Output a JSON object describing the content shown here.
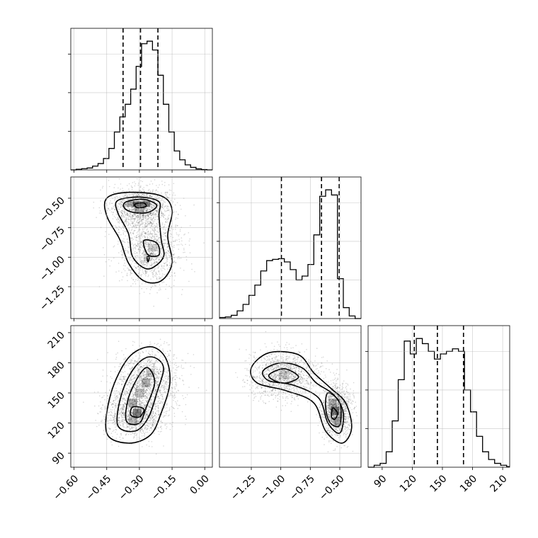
{
  "chart_data": {
    "type": "corner",
    "parameters": [
      "p1",
      "p2",
      "p3"
    ],
    "ranges": {
      "p1": [
        -0.615,
        0.035
      ],
      "p2": [
        -1.52,
        -0.32
      ],
      "p3": [
        76,
        217
      ]
    },
    "ticks": {
      "p1": [
        "-0.60",
        "-0.45",
        "-0.30",
        "-0.15",
        "0.00"
      ],
      "p2": [
        "-1.25",
        "-1.00",
        "-0.75",
        "-0.50"
      ],
      "p3": [
        "90",
        "120",
        "150",
        "180",
        "210"
      ]
    },
    "tick_values": {
      "p1": [
        -0.6,
        -0.45,
        -0.3,
        -0.15,
        0.0
      ],
      "p2": [
        -1.25,
        -1.0,
        -0.75,
        -0.5
      ],
      "p3": [
        90,
        120,
        150,
        180,
        210
      ]
    },
    "quantiles": {
      "p1": [
        -0.375,
        -0.295,
        -0.215
      ],
      "p2": [
        -0.995,
        -0.655,
        -0.505
      ],
      "p3": [
        122,
        145,
        171
      ]
    },
    "histograms": {
      "p1": {
        "bin_edges": [
          -0.615,
          -0.59,
          -0.565,
          -0.54,
          -0.515,
          -0.49,
          -0.465,
          -0.44,
          -0.415,
          -0.39,
          -0.365,
          -0.34,
          -0.315,
          -0.29,
          -0.265,
          -0.24,
          -0.215,
          -0.19,
          -0.165,
          -0.14,
          -0.115,
          -0.09,
          -0.065,
          -0.04,
          -0.015,
          0.01,
          0.035
        ],
        "counts": [
          0,
          5,
          10,
          15,
          30,
          50,
          90,
          170,
          300,
          420,
          520,
          640,
          820,
          1000,
          1020,
          950,
          750,
          520,
          300,
          150,
          80,
          40,
          20,
          8,
          3,
          0
        ]
      },
      "p2": {
        "bin_edges": [
          -1.52,
          -1.47,
          -1.42,
          -1.37,
          -1.32,
          -1.27,
          -1.22,
          -1.17,
          -1.12,
          -1.07,
          -1.02,
          -0.97,
          -0.92,
          -0.87,
          -0.82,
          -0.77,
          -0.72,
          -0.67,
          -0.62,
          -0.57,
          -0.52,
          -0.47,
          -0.42,
          -0.37,
          -0.32
        ],
        "counts": [
          8,
          12,
          25,
          60,
          110,
          180,
          260,
          370,
          450,
          460,
          465,
          440,
          380,
          300,
          330,
          420,
          650,
          950,
          1000,
          960,
          310,
          85,
          20,
          0
        ]
      },
      "p3": {
        "bin_edges": [
          76,
          82,
          88,
          94,
          100,
          106,
          112,
          118,
          124,
          130,
          136,
          142,
          148,
          154,
          160,
          166,
          172,
          178,
          184,
          190,
          196,
          202,
          208,
          214,
          217
        ],
        "counts": [
          0,
          15,
          30,
          120,
          360,
          680,
          980,
          880,
          1000,
          960,
          900,
          840,
          880,
          900,
          920,
          900,
          600,
          430,
          240,
          120,
          60,
          30,
          15,
          5
        ]
      }
    },
    "scatter_density": {
      "p1_p2": {
        "modes": [
          [
            -0.3,
            -0.55
          ],
          [
            -0.25,
            -0.93
          ]
        ]
      },
      "p1_p3": {
        "modes": [
          [
            -0.32,
            130
          ],
          [
            -0.26,
            165
          ]
        ]
      },
      "p2_p3": {
        "modes": [
          [
            -0.97,
            170
          ],
          [
            -0.53,
            130
          ]
        ]
      }
    },
    "grid": true,
    "legend": "none"
  }
}
